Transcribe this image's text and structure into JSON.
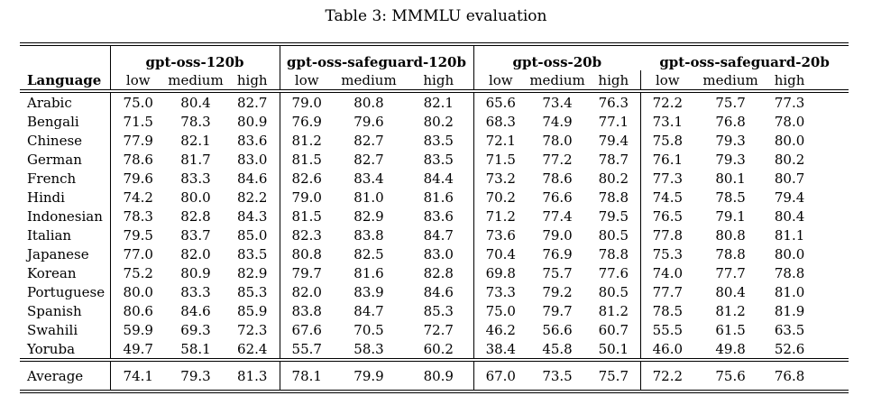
{
  "title": "Table 3: MMMLU evaluation",
  "table": {
    "language_header": "Language",
    "groups": [
      {
        "name": "gpt-oss-120b",
        "subcols": [
          "low",
          "medium",
          "high"
        ]
      },
      {
        "name": "gpt-oss-safeguard-120b",
        "subcols": [
          "low",
          "medium",
          "high"
        ]
      },
      {
        "name": "gpt-oss-20b",
        "subcols": [
          "low",
          "medium",
          "high"
        ]
      },
      {
        "name": "gpt-oss-safeguard-20b",
        "subcols": [
          "low",
          "medium",
          "high"
        ]
      }
    ],
    "rows": [
      {
        "language": "Arabic",
        "values": [
          "75.0",
          "80.4",
          "82.7",
          "79.0",
          "80.8",
          "82.1",
          "65.6",
          "73.4",
          "76.3",
          "72.2",
          "75.7",
          "77.3"
        ]
      },
      {
        "language": "Bengali",
        "values": [
          "71.5",
          "78.3",
          "80.9",
          "76.9",
          "79.6",
          "80.2",
          "68.3",
          "74.9",
          "77.1",
          "73.1",
          "76.8",
          "78.0"
        ]
      },
      {
        "language": "Chinese",
        "values": [
          "77.9",
          "82.1",
          "83.6",
          "81.2",
          "82.7",
          "83.5",
          "72.1",
          "78.0",
          "79.4",
          "75.8",
          "79.3",
          "80.0"
        ]
      },
      {
        "language": "German",
        "values": [
          "78.6",
          "81.7",
          "83.0",
          "81.5",
          "82.7",
          "83.5",
          "71.5",
          "77.2",
          "78.7",
          "76.1",
          "79.3",
          "80.2"
        ]
      },
      {
        "language": "French",
        "values": [
          "79.6",
          "83.3",
          "84.6",
          "82.6",
          "83.4",
          "84.4",
          "73.2",
          "78.6",
          "80.2",
          "77.3",
          "80.1",
          "80.7"
        ]
      },
      {
        "language": "Hindi",
        "values": [
          "74.2",
          "80.0",
          "82.2",
          "79.0",
          "81.0",
          "81.6",
          "70.2",
          "76.6",
          "78.8",
          "74.5",
          "78.5",
          "79.4"
        ]
      },
      {
        "language": "Indonesian",
        "values": [
          "78.3",
          "82.8",
          "84.3",
          "81.5",
          "82.9",
          "83.6",
          "71.2",
          "77.4",
          "79.5",
          "76.5",
          "79.1",
          "80.4"
        ]
      },
      {
        "language": "Italian",
        "values": [
          "79.5",
          "83.7",
          "85.0",
          "82.3",
          "83.8",
          "84.7",
          "73.6",
          "79.0",
          "80.5",
          "77.8",
          "80.8",
          "81.1"
        ]
      },
      {
        "language": "Japanese",
        "values": [
          "77.0",
          "82.0",
          "83.5",
          "80.8",
          "82.5",
          "83.0",
          "70.4",
          "76.9",
          "78.8",
          "75.3",
          "78.8",
          "80.0"
        ]
      },
      {
        "language": "Korean",
        "values": [
          "75.2",
          "80.9",
          "82.9",
          "79.7",
          "81.6",
          "82.8",
          "69.8",
          "75.7",
          "77.6",
          "74.0",
          "77.7",
          "78.8"
        ]
      },
      {
        "language": "Portuguese",
        "values": [
          "80.0",
          "83.3",
          "85.3",
          "82.0",
          "83.9",
          "84.6",
          "73.3",
          "79.2",
          "80.5",
          "77.7",
          "80.4",
          "81.0"
        ]
      },
      {
        "language": "Spanish",
        "values": [
          "80.6",
          "84.6",
          "85.9",
          "83.8",
          "84.7",
          "85.3",
          "75.0",
          "79.7",
          "81.2",
          "78.5",
          "81.2",
          "81.9"
        ]
      },
      {
        "language": "Swahili",
        "values": [
          "59.9",
          "69.3",
          "72.3",
          "67.6",
          "70.5",
          "72.7",
          "46.2",
          "56.6",
          "60.7",
          "55.5",
          "61.5",
          "63.5"
        ]
      },
      {
        "language": "Yoruba",
        "values": [
          "49.7",
          "58.1",
          "62.4",
          "55.7",
          "58.3",
          "60.2",
          "38.4",
          "45.8",
          "50.1",
          "46.0",
          "49.8",
          "52.6"
        ]
      }
    ],
    "average": {
      "language": "Average",
      "values": [
        "74.1",
        "79.3",
        "81.3",
        "78.1",
        "79.9",
        "80.9",
        "67.0",
        "73.5",
        "75.7",
        "72.2",
        "75.6",
        "76.8"
      ]
    }
  }
}
